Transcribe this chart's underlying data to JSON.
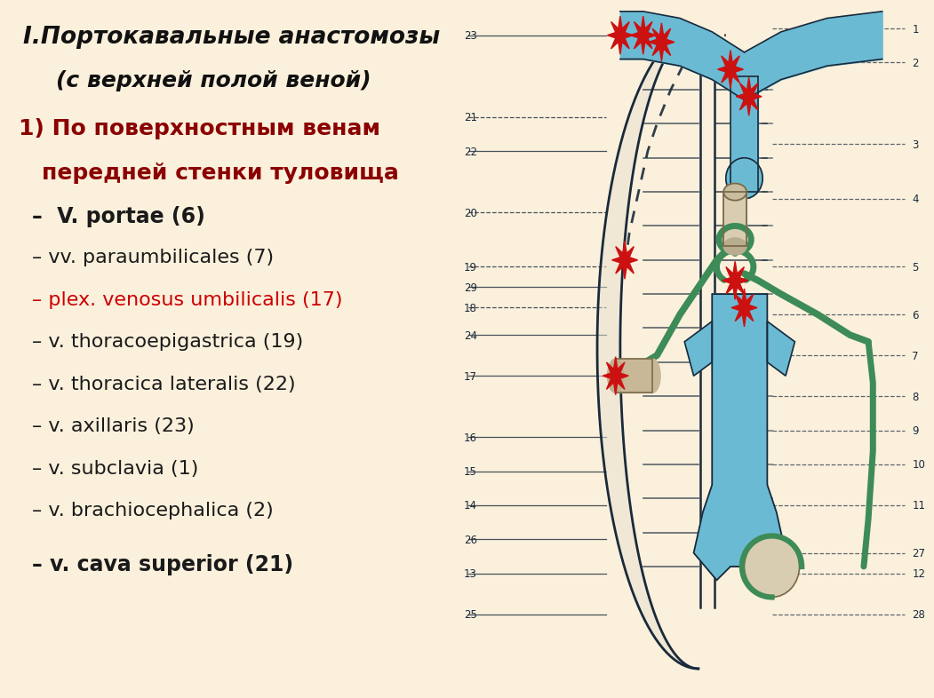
{
  "bg_color": "#FAF0DC",
  "title_line1": "I.Портокавальные анастомозы",
  "title_line2": "(с верхней полой веной)",
  "items": [
    {
      "text": "–  V. portae (6)",
      "color": "#1a1a1a",
      "bold": true
    },
    {
      "text": "– vv. paraumbilicales (7)",
      "color": "#1a1a1a",
      "bold": false
    },
    {
      "text": "– plex. venosus umbilicalis (17)",
      "color": "#cc0000",
      "bold": false
    },
    {
      "text": "– v. thoracoepigastrica (19)",
      "color": "#1a1a1a",
      "bold": false
    },
    {
      "text": "– v. thoracica lateralis (22)",
      "color": "#1a1a1a",
      "bold": false
    },
    {
      "text": "– v. axillaris (23)",
      "color": "#1a1a1a",
      "bold": false
    },
    {
      "text": "– v. subclavia (1)",
      "color": "#1a1a1a",
      "bold": false
    },
    {
      "text": "– v. brachiocephalica (2)",
      "color": "#1a1a1a",
      "bold": false
    },
    {
      "text": "– v. cava superior (21)",
      "color": "#1a1a1a",
      "bold": true
    }
  ],
  "blue": "#6BBAD4",
  "blue_dark": "#2255AA",
  "green": "#3D8B57",
  "dark": "#1a2a3a",
  "tan": "#C8B898",
  "star_color": "#CC1111",
  "right_labels": [
    [
      "1",
      97
    ],
    [
      "2",
      92
    ],
    [
      "3",
      80
    ],
    [
      "4",
      72
    ],
    [
      "5",
      62
    ],
    [
      "6",
      55
    ],
    [
      "7",
      49
    ],
    [
      "8",
      43
    ],
    [
      "9",
      38
    ],
    [
      "10",
      33
    ],
    [
      "11",
      27
    ],
    [
      "12",
      17
    ],
    [
      "28",
      11
    ],
    [
      "27",
      20
    ]
  ],
  "left_labels": [
    [
      "23",
      96
    ],
    [
      "21",
      84
    ],
    [
      "22",
      79
    ],
    [
      "20",
      70
    ],
    [
      "19",
      62
    ],
    [
      "18",
      56
    ],
    [
      "24",
      52
    ],
    [
      "29",
      59
    ],
    [
      "17",
      46
    ],
    [
      "16",
      37
    ],
    [
      "15",
      32
    ],
    [
      "14",
      27
    ],
    [
      "26",
      22
    ],
    [
      "13",
      17
    ],
    [
      "25",
      11
    ]
  ]
}
